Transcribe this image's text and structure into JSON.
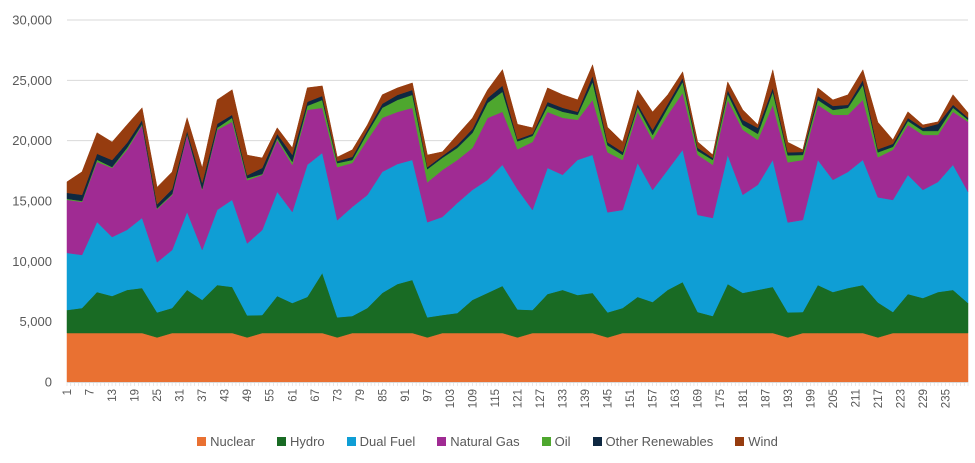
{
  "chart_data": {
    "type": "area",
    "stacked": true,
    "title": "",
    "xlabel": "",
    "ylabel": "",
    "ylim": [
      0,
      30000
    ],
    "y_ticks": [
      "0",
      "5,000",
      "10,000",
      "15,000",
      "20,000",
      "25,000",
      "30,000"
    ],
    "y_tick_values": [
      0,
      5000,
      10000,
      15000,
      20000,
      25000,
      30000
    ],
    "grid": true,
    "legend_position": "bottom",
    "x_range": [
      1,
      241
    ],
    "x_tick_labels": [
      "1",
      "7",
      "13",
      "19",
      "25",
      "31",
      "37",
      "43",
      "49",
      "55",
      "61",
      "67",
      "73",
      "79",
      "85",
      "91",
      "97",
      "103",
      "109",
      "115",
      "121",
      "127",
      "133",
      "139",
      "145",
      "151",
      "157",
      "163",
      "169",
      "175",
      "181",
      "187",
      "193",
      "199",
      "205",
      "211",
      "217",
      "223",
      "229",
      "235"
    ],
    "categories": [
      1,
      5,
      9,
      13,
      17,
      21,
      25,
      29,
      33,
      37,
      41,
      45,
      49,
      53,
      57,
      61,
      65,
      69,
      73,
      77,
      81,
      85,
      89,
      93,
      97,
      101,
      105,
      109,
      113,
      117,
      121,
      125,
      129,
      133,
      137,
      141,
      145,
      149,
      153,
      157,
      161,
      165,
      169,
      173,
      177,
      181,
      185,
      189,
      193,
      197,
      201,
      205,
      209,
      213,
      217,
      221,
      225,
      229,
      233,
      237,
      241
    ],
    "series": [
      {
        "name": "Nuclear",
        "color": "#E97132",
        "values": [
          4060,
          4060,
          4060,
          4060,
          4060,
          4060,
          3700,
          4060,
          4060,
          4060,
          4060,
          4060,
          3700,
          4060,
          4060,
          4060,
          4060,
          4060,
          3700,
          4060,
          4060,
          4060,
          4060,
          4060,
          3700,
          4060,
          4060,
          4060,
          4060,
          4060,
          3700,
          4060,
          4060,
          4060,
          4060,
          4060,
          3700,
          4060,
          4060,
          4060,
          4060,
          4060,
          4060,
          4060,
          4060,
          4060,
          4060,
          4060,
          3700,
          4060,
          4060,
          4060,
          4060,
          4060,
          3700,
          4060,
          4060,
          4060,
          4060,
          4060,
          4060
        ]
      },
      {
        "name": "Hydro",
        "color": "#196B24",
        "values": [
          1910,
          2070,
          3400,
          3070,
          3570,
          3730,
          2070,
          2070,
          3570,
          2740,
          3980,
          3820,
          1820,
          1490,
          3070,
          2490,
          2990,
          4980,
          1660,
          1410,
          2070,
          3320,
          4060,
          4400,
          1660,
          1490,
          1660,
          2740,
          3320,
          3900,
          2320,
          1910,
          3230,
          3570,
          3150,
          3320,
          2070,
          2070,
          2990,
          2570,
          3570,
          4230,
          1740,
          1410,
          4060,
          3320,
          3570,
          3820,
          2070,
          1740,
          3980,
          3400,
          3730,
          3980,
          2900,
          1740,
          3230,
          2900,
          3400,
          3570,
          2490
        ]
      },
      {
        "name": "Dual Fuel",
        "color": "#0F9ED5",
        "values": [
          4730,
          4400,
          5810,
          4890,
          4980,
          5810,
          4150,
          4810,
          6470,
          4150,
          6220,
          7220,
          5970,
          7050,
          8630,
          7550,
          10950,
          9950,
          8050,
          9040,
          9370,
          10040,
          9950,
          9950,
          7880,
          8130,
          9120,
          9120,
          9370,
          10040,
          9950,
          8290,
          10450,
          9540,
          11200,
          11450,
          8290,
          8130,
          11110,
          9290,
          9950,
          10950,
          8050,
          8130,
          10700,
          8130,
          8710,
          10530,
          7460,
          7630,
          10370,
          9290,
          9620,
          10370,
          8710,
          9290,
          9870,
          8960,
          9120,
          10370,
          9210
        ]
      },
      {
        "name": "Natural Gas",
        "color": "#A02B93",
        "values": [
          4400,
          4400,
          4980,
          5720,
          6640,
          7710,
          4400,
          4560,
          6390,
          4980,
          6640,
          6470,
          5230,
          4560,
          4310,
          3900,
          4560,
          3730,
          4400,
          3650,
          4560,
          4480,
          4310,
          4310,
          3320,
          3900,
          3570,
          3480,
          5140,
          4400,
          3320,
          5640,
          4640,
          4730,
          3320,
          4560,
          4980,
          4150,
          4230,
          4150,
          4560,
          4730,
          4980,
          4400,
          4560,
          5390,
          3730,
          4560,
          4980,
          4980,
          4560,
          5390,
          4730,
          4980,
          3320,
          4150,
          4150,
          4560,
          3900,
          4400,
          5810
        ]
      },
      {
        "name": "Oil",
        "color": "#4EA72E",
        "values": [
          80,
          80,
          170,
          80,
          170,
          80,
          80,
          80,
          80,
          80,
          170,
          330,
          170,
          80,
          170,
          250,
          330,
          660,
          330,
          250,
          580,
          830,
          1000,
          1080,
          1080,
          1000,
          1000,
          1240,
          1240,
          1660,
          660,
          500,
          500,
          500,
          410,
          1490,
          580,
          410,
          410,
          410,
          580,
          910,
          330,
          410,
          500,
          410,
          500,
          1080,
          580,
          410,
          410,
          410,
          580,
          1240,
          410,
          250,
          330,
          330,
          330,
          330,
          170
        ]
      },
      {
        "name": "Other Renewables",
        "color": "#0E2841",
        "values": [
          500,
          500,
          500,
          580,
          410,
          330,
          330,
          410,
          250,
          500,
          330,
          250,
          250,
          500,
          330,
          580,
          330,
          330,
          170,
          250,
          250,
          330,
          410,
          410,
          170,
          170,
          250,
          330,
          410,
          500,
          170,
          170,
          330,
          330,
          250,
          500,
          250,
          250,
          250,
          410,
          330,
          330,
          250,
          170,
          330,
          410,
          500,
          330,
          250,
          250,
          330,
          330,
          250,
          410,
          250,
          250,
          250,
          250,
          580,
          250,
          170
        ]
      },
      {
        "name": "Wind",
        "color": "#963C0F",
        "values": [
          910,
          1910,
          1740,
          1490,
          1490,
          1000,
          1410,
          1410,
          1080,
          1240,
          1990,
          2070,
          1660,
          830,
          500,
          580,
          1160,
          830,
          330,
          580,
          410,
          750,
          580,
          580,
          1000,
          330,
          830,
          910,
          660,
          1330,
          1240,
          500,
          1160,
          1080,
          1000,
          910,
          1240,
          830,
          1160,
          1490,
          750,
          500,
          500,
          250,
          660,
          830,
          250,
          1490,
          830,
          170,
          660,
          500,
          830,
          830,
          2240,
          330,
          500,
          250,
          170,
          830,
          410
        ]
      }
    ]
  }
}
